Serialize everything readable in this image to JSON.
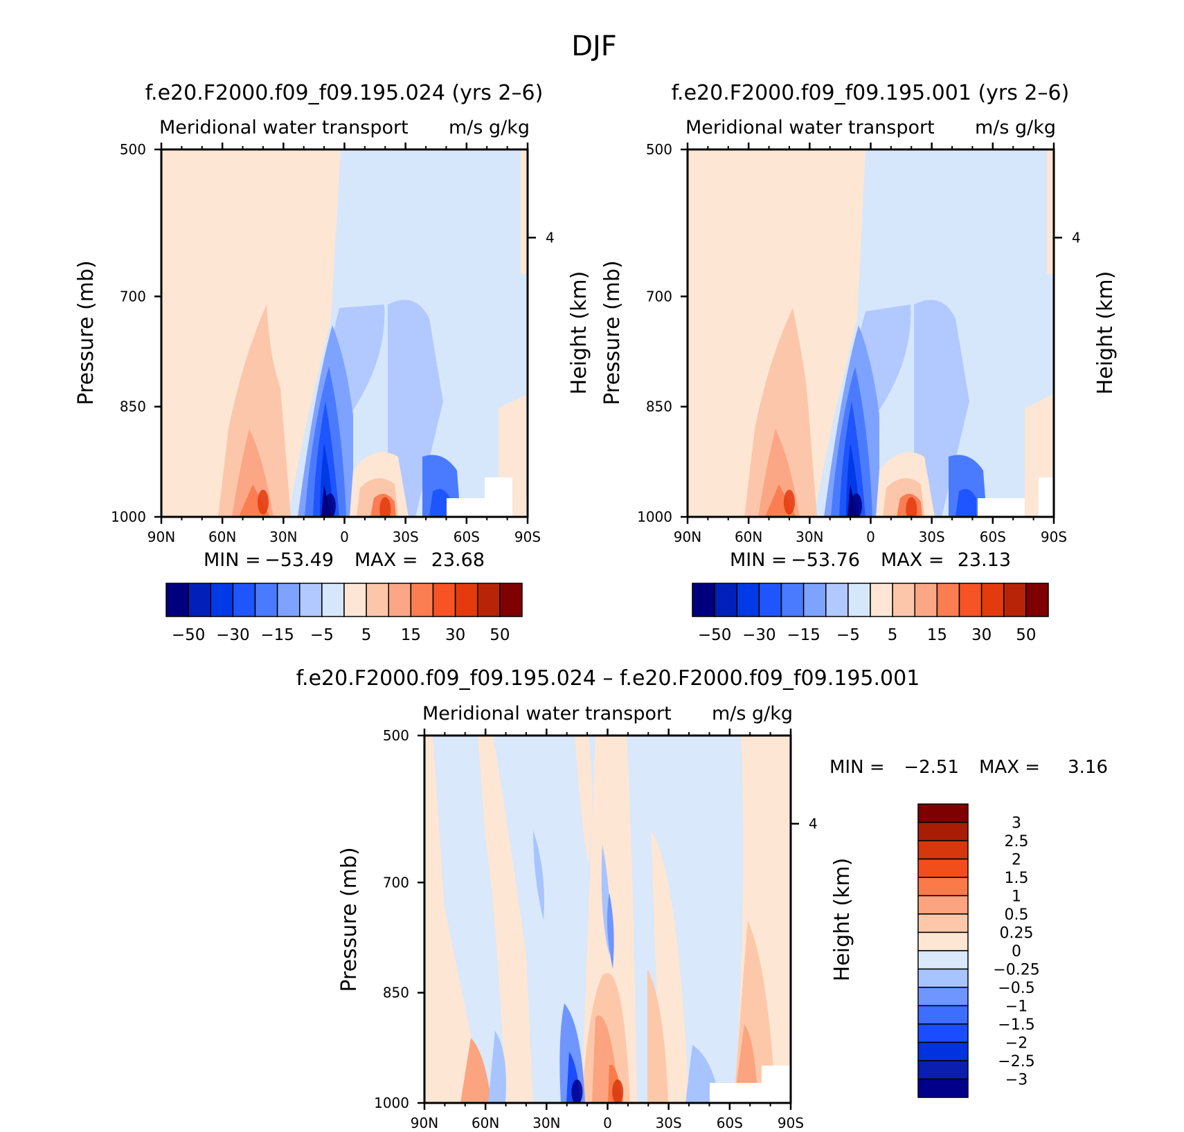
{
  "figure": {
    "title": "DJF"
  },
  "colors": {
    "full_field": [
      "#00007f",
      "#0021b9",
      "#0039e6",
      "#1f55ff",
      "#4a7bff",
      "#7ea2ff",
      "#b1c9ff",
      "#d7e7fb",
      "#fde6d4",
      "#fcc6ab",
      "#fba685",
      "#fb7d52",
      "#f75324",
      "#e33a0e",
      "#b72407",
      "#7f0000"
    ],
    "difference": [
      "#00008b",
      "#0a1fb0",
      "#0033e0",
      "#1a4dff",
      "#3d6eff",
      "#6f95ff",
      "#a8c4ff",
      "#d9e8fb",
      "#fee6d4",
      "#fdc8aa",
      "#fba47f",
      "#fa7a4a",
      "#f24e1c",
      "#d6370c",
      "#a81e05",
      "#7f0000"
    ],
    "missing": "#ffffff"
  },
  "chart_data": [
    {
      "type": "heatmap",
      "title": "f.e20.F2000.f09_f09.195.024 (yrs 2–6)",
      "subtitle_left": "Meridional water transport",
      "subtitle_right": "m/s g/kg",
      "xlabel": "",
      "ylabel": "Pressure (mb)",
      "ylabel_right": "Height (km)",
      "x_ticks": [
        "90N",
        "60N",
        "30N",
        "0",
        "30S",
        "60S",
        "90S"
      ],
      "y_ticks": [
        "500",
        "700",
        "850",
        "1000"
      ],
      "y_right_ticks": [
        "4"
      ],
      "xlim": [
        90,
        -90
      ],
      "ylim": [
        1000,
        500
      ],
      "min_label": "MIN =",
      "min_value": "−53.49",
      "max_label": "MAX =",
      "max_value": "23.68",
      "colorbar_labels": [
        "−50",
        "−30",
        "−15",
        "−5",
        "5",
        "15",
        "30",
        "50"
      ],
      "features": [
        {
          "lat": 7,
          "p": 985,
          "value": -53.49
        },
        {
          "lat": 40,
          "p": 980,
          "value": 23.68
        },
        {
          "lat": -20,
          "p": 990,
          "value": 20
        }
      ]
    },
    {
      "type": "heatmap",
      "title": "f.e20.F2000.f09_f09.195.001 (yrs 2–6)",
      "subtitle_left": "Meridional water transport",
      "subtitle_right": "m/s g/kg",
      "xlabel": "",
      "ylabel": "Pressure (mb)",
      "ylabel_right": "Height (km)",
      "x_ticks": [
        "90N",
        "60N",
        "30N",
        "0",
        "30S",
        "60S",
        "90S"
      ],
      "y_ticks": [
        "500",
        "700",
        "850",
        "1000"
      ],
      "y_right_ticks": [
        "4"
      ],
      "xlim": [
        90,
        -90
      ],
      "ylim": [
        1000,
        500
      ],
      "min_label": "MIN =",
      "min_value": "−53.76",
      "max_label": "MAX =",
      "max_value": "23.13",
      "colorbar_labels": [
        "−50",
        "−30",
        "−15",
        "−5",
        "5",
        "15",
        "30",
        "50"
      ],
      "features": [
        {
          "lat": 7,
          "p": 985,
          "value": -53.76
        },
        {
          "lat": 40,
          "p": 980,
          "value": 23.13
        },
        {
          "lat": -20,
          "p": 990,
          "value": 19
        }
      ]
    },
    {
      "type": "heatmap",
      "title": "f.e20.F2000.f09_f09.195.024 – f.e20.F2000.f09_f09.195.001",
      "subtitle_left": "Meridional water transport",
      "subtitle_right": "m/s g/kg",
      "xlabel": "",
      "ylabel": "Pressure (mb)",
      "ylabel_right": "Height (km)",
      "x_ticks": [
        "90N",
        "60N",
        "30N",
        "0",
        "30S",
        "60S",
        "90S"
      ],
      "y_ticks": [
        "500",
        "700",
        "850",
        "1000"
      ],
      "y_right_ticks": [
        "4"
      ],
      "xlim": [
        90,
        -90
      ],
      "ylim": [
        1000,
        500
      ],
      "min_label": "MIN =",
      "min_value": "−2.51",
      "max_label": "MAX =",
      "max_value": "3.16",
      "colorbar_labels": [
        "3",
        "2.5",
        "2",
        "1.5",
        "1",
        "0.5",
        "0.25",
        "0",
        "−0.25",
        "−0.5",
        "−1",
        "−1.5",
        "−2",
        "−2.5",
        "−3"
      ],
      "features": [
        {
          "lat": 15,
          "p": 985,
          "value": -2.51
        },
        {
          "lat": -5,
          "p": 985,
          "value": 3.16
        }
      ]
    }
  ]
}
